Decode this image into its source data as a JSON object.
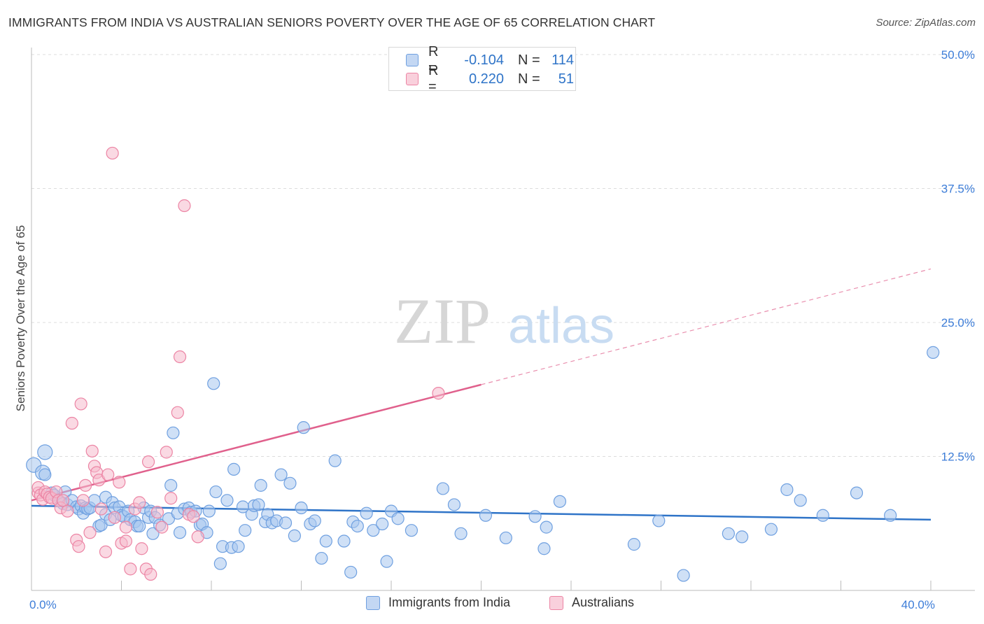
{
  "title": "IMMIGRANTS FROM INDIA VS AUSTRALIAN SENIORS POVERTY OVER THE AGE OF 65 CORRELATION CHART",
  "source": "Source: ZipAtlas.com",
  "watermark": {
    "zip": "ZIP",
    "atlas": "atlas"
  },
  "colors": {
    "blue": "#6fa0e0",
    "blue_fill": "#a8c6ee",
    "blue_line": "#2f74c8",
    "pink": "#ec84a4",
    "pink_fill": "#f6b9cc",
    "pink_line": "#e0608c",
    "axis_text": "#3d7dd8",
    "grid": "#dddddd"
  },
  "legend_top": {
    "rows": [
      {
        "swatch": "blue",
        "r_label": "R =",
        "r_value": "-0.104",
        "n_label": "N =",
        "n_value": "114"
      },
      {
        "swatch": "pink",
        "r_label": "R =",
        "r_value": "0.220",
        "n_label": "N =",
        "n_value": "51"
      }
    ]
  },
  "legend_bottom": {
    "items": [
      {
        "swatch": "blue",
        "label": "Immigrants from India"
      },
      {
        "swatch": "pink",
        "label": "Australians"
      }
    ]
  },
  "chart_data": {
    "type": "scatter",
    "title": "IMMIGRANTS FROM INDIA VS AUSTRALIAN SENIORS POVERTY OVER THE AGE OF 65 CORRELATION CHART",
    "xlabel": "",
    "ylabel": "Seniors Poverty Over the Age of 65",
    "xlim": [
      0,
      40
    ],
    "ylim": [
      0,
      50
    ],
    "x_tick_labels": [
      {
        "value": 0,
        "label": "0.0%"
      },
      {
        "value": 40,
        "label": "40.0%"
      }
    ],
    "y_tick_labels": [
      {
        "value": 12.5,
        "label": "12.5%"
      },
      {
        "value": 25,
        "label": "25.0%"
      },
      {
        "value": 37.5,
        "label": "37.5%"
      },
      {
        "value": 50,
        "label": "50.0%"
      }
    ],
    "legend_position": "top-center",
    "series": [
      {
        "name": "Immigrants from India",
        "color": "#6fa0e0",
        "trend": {
          "x": [
            0,
            40
          ],
          "y": [
            7.9,
            6.6
          ],
          "solid_until": 40
        },
        "points": [
          [
            0.1,
            11.7
          ],
          [
            0.5,
            11.0
          ],
          [
            0.6,
            12.9
          ],
          [
            0.6,
            10.8
          ],
          [
            0.9,
            9.1
          ],
          [
            1.0,
            8.9
          ],
          [
            1.2,
            8.4
          ],
          [
            1.4,
            8.1
          ],
          [
            1.5,
            9.2
          ],
          [
            1.6,
            8.0
          ],
          [
            1.8,
            8.4
          ],
          [
            2.0,
            7.8
          ],
          [
            2.1,
            7.6
          ],
          [
            2.2,
            7.9
          ],
          [
            2.3,
            7.2
          ],
          [
            2.4,
            7.7
          ],
          [
            2.5,
            7.6
          ],
          [
            2.6,
            7.7
          ],
          [
            2.8,
            8.4
          ],
          [
            3.0,
            6.0
          ],
          [
            3.1,
            6.1
          ],
          [
            3.3,
            7.1
          ],
          [
            3.3,
            8.7
          ],
          [
            3.5,
            6.6
          ],
          [
            3.6,
            8.2
          ],
          [
            3.7,
            7.7
          ],
          [
            3.9,
            7.8
          ],
          [
            4.0,
            7.0
          ],
          [
            4.1,
            6.9
          ],
          [
            4.3,
            7.4
          ],
          [
            4.4,
            6.6
          ],
          [
            4.6,
            6.4
          ],
          [
            4.7,
            6.0
          ],
          [
            4.8,
            6.0
          ],
          [
            5.0,
            7.7
          ],
          [
            5.2,
            6.8
          ],
          [
            5.3,
            7.4
          ],
          [
            5.4,
            5.3
          ],
          [
            5.5,
            6.8
          ],
          [
            5.7,
            6.1
          ],
          [
            6.1,
            6.7
          ],
          [
            6.2,
            9.8
          ],
          [
            6.3,
            14.7
          ],
          [
            6.5,
            7.2
          ],
          [
            6.6,
            5.4
          ],
          [
            6.8,
            7.6
          ],
          [
            7.0,
            7.7
          ],
          [
            7.1,
            7.3
          ],
          [
            7.3,
            7.4
          ],
          [
            7.5,
            6.1
          ],
          [
            7.6,
            6.2
          ],
          [
            7.8,
            5.4
          ],
          [
            7.9,
            7.4
          ],
          [
            8.1,
            19.3
          ],
          [
            8.2,
            9.2
          ],
          [
            8.4,
            2.5
          ],
          [
            8.5,
            4.1
          ],
          [
            8.7,
            8.4
          ],
          [
            8.9,
            4.0
          ],
          [
            9.0,
            11.3
          ],
          [
            9.2,
            4.1
          ],
          [
            9.4,
            7.8
          ],
          [
            9.5,
            5.6
          ],
          [
            9.8,
            7.1
          ],
          [
            9.9,
            7.9
          ],
          [
            10.1,
            8.0
          ],
          [
            10.2,
            9.8
          ],
          [
            10.4,
            6.4
          ],
          [
            10.5,
            7.1
          ],
          [
            10.7,
            6.3
          ],
          [
            10.9,
            6.5
          ],
          [
            11.1,
            10.8
          ],
          [
            11.3,
            6.3
          ],
          [
            11.5,
            10.0
          ],
          [
            11.7,
            5.1
          ],
          [
            12.0,
            7.7
          ],
          [
            12.1,
            15.2
          ],
          [
            12.4,
            6.2
          ],
          [
            12.6,
            6.5
          ],
          [
            12.9,
            3.0
          ],
          [
            13.1,
            4.6
          ],
          [
            13.5,
            12.1
          ],
          [
            13.9,
            4.6
          ],
          [
            14.2,
            1.7
          ],
          [
            14.3,
            6.4
          ],
          [
            14.5,
            6.0
          ],
          [
            14.9,
            7.2
          ],
          [
            15.2,
            5.6
          ],
          [
            15.6,
            6.2
          ],
          [
            15.8,
            2.7
          ],
          [
            16.0,
            7.4
          ],
          [
            16.3,
            6.7
          ],
          [
            16.9,
            5.6
          ],
          [
            18.3,
            9.5
          ],
          [
            18.8,
            8.0
          ],
          [
            19.1,
            5.3
          ],
          [
            20.2,
            7.0
          ],
          [
            21.1,
            4.9
          ],
          [
            22.4,
            6.9
          ],
          [
            22.8,
            3.9
          ],
          [
            22.9,
            5.9
          ],
          [
            23.5,
            8.3
          ],
          [
            26.8,
            4.3
          ],
          [
            27.9,
            6.5
          ],
          [
            29.0,
            1.4
          ],
          [
            31.0,
            5.3
          ],
          [
            31.6,
            5.0
          ],
          [
            32.9,
            5.7
          ],
          [
            33.6,
            9.4
          ],
          [
            34.2,
            8.4
          ],
          [
            35.2,
            7.0
          ],
          [
            36.7,
            9.1
          ],
          [
            38.2,
            7.0
          ],
          [
            40.1,
            22.2
          ]
        ]
      },
      {
        "name": "Australians",
        "color": "#ec84a4",
        "trend": {
          "x": [
            0,
            40
          ],
          "y": [
            8.4,
            30.0
          ],
          "solid_until": 20
        },
        "points": [
          [
            0.3,
            9.1
          ],
          [
            0.3,
            9.6
          ],
          [
            0.4,
            8.9
          ],
          [
            0.5,
            8.5
          ],
          [
            0.6,
            9.2
          ],
          [
            0.7,
            9.0
          ],
          [
            0.8,
            8.7
          ],
          [
            0.9,
            8.6
          ],
          [
            1.1,
            9.2
          ],
          [
            1.2,
            8.4
          ],
          [
            1.3,
            7.7
          ],
          [
            1.4,
            8.4
          ],
          [
            1.6,
            7.4
          ],
          [
            1.8,
            15.6
          ],
          [
            2.0,
            4.7
          ],
          [
            2.1,
            4.1
          ],
          [
            2.2,
            17.4
          ],
          [
            2.3,
            8.4
          ],
          [
            2.4,
            9.8
          ],
          [
            2.6,
            5.4
          ],
          [
            2.7,
            13.0
          ],
          [
            2.8,
            11.6
          ],
          [
            2.9,
            11.0
          ],
          [
            3.0,
            10.3
          ],
          [
            3.1,
            7.6
          ],
          [
            3.3,
            3.6
          ],
          [
            3.4,
            10.8
          ],
          [
            3.6,
            40.8
          ],
          [
            3.7,
            6.8
          ],
          [
            3.9,
            10.1
          ],
          [
            4.0,
            4.4
          ],
          [
            4.2,
            4.6
          ],
          [
            4.2,
            5.9
          ],
          [
            4.4,
            2.0
          ],
          [
            4.6,
            7.6
          ],
          [
            4.8,
            8.2
          ],
          [
            4.9,
            3.9
          ],
          [
            5.1,
            2.0
          ],
          [
            5.2,
            12.0
          ],
          [
            5.3,
            1.5
          ],
          [
            5.6,
            7.3
          ],
          [
            5.8,
            5.9
          ],
          [
            6.0,
            12.9
          ],
          [
            6.2,
            8.6
          ],
          [
            6.5,
            16.6
          ],
          [
            6.6,
            21.8
          ],
          [
            6.8,
            35.9
          ],
          [
            7.0,
            7.1
          ],
          [
            7.2,
            6.9
          ],
          [
            7.4,
            5.0
          ],
          [
            18.1,
            18.4
          ]
        ]
      }
    ]
  }
}
